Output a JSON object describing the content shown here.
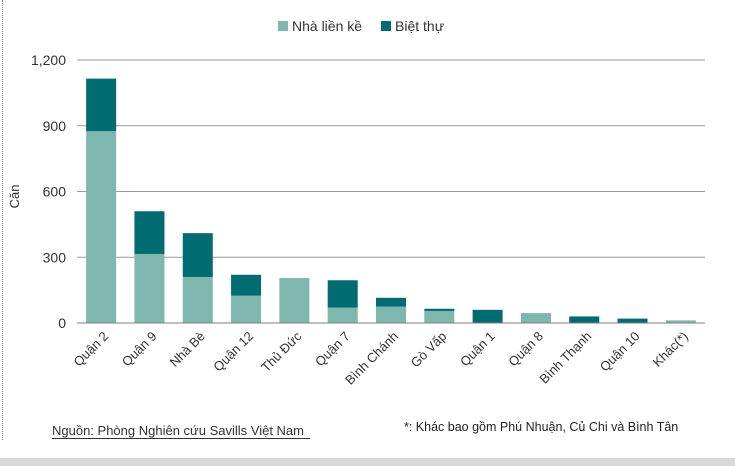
{
  "chart_data": {
    "type": "bar",
    "stacked": true,
    "ylabel": "Căn",
    "xlabel": "",
    "ylim": [
      0,
      1200
    ],
    "yticks": [
      "0",
      "300",
      "600",
      "900",
      "1,200"
    ],
    "ytick_values": [
      0,
      300,
      600,
      900,
      1200
    ],
    "grid": "horizontal",
    "legend_position": "top",
    "categories": [
      "Quận 2",
      "Quận 9",
      "Nhà Bè",
      "Quận 12",
      "Thủ Đức",
      "Quận 7",
      "Bình Chánh",
      "Gò Vấp",
      "Quận 1",
      "Quận 8",
      "Bình Thạnh",
      "Quận 10",
      "Khác(*)"
    ],
    "series": [
      {
        "name": "Nhà liền kề",
        "color": "#7db7ad",
        "values": [
          875,
          315,
          210,
          125,
          205,
          70,
          75,
          55,
          0,
          45,
          0,
          0,
          12
        ]
      },
      {
        "name": "Biệt thự",
        "color": "#006b70",
        "values": [
          240,
          195,
          200,
          95,
          0,
          125,
          40,
          10,
          60,
          0,
          30,
          20,
          0
        ]
      }
    ]
  },
  "footer": {
    "source": "Nguồn: Phòng Nghiên cứu Savills Việt Nam",
    "note": "*: Khác bao gồm Phú Nhuận, Củ Chi và Bình Tân"
  }
}
